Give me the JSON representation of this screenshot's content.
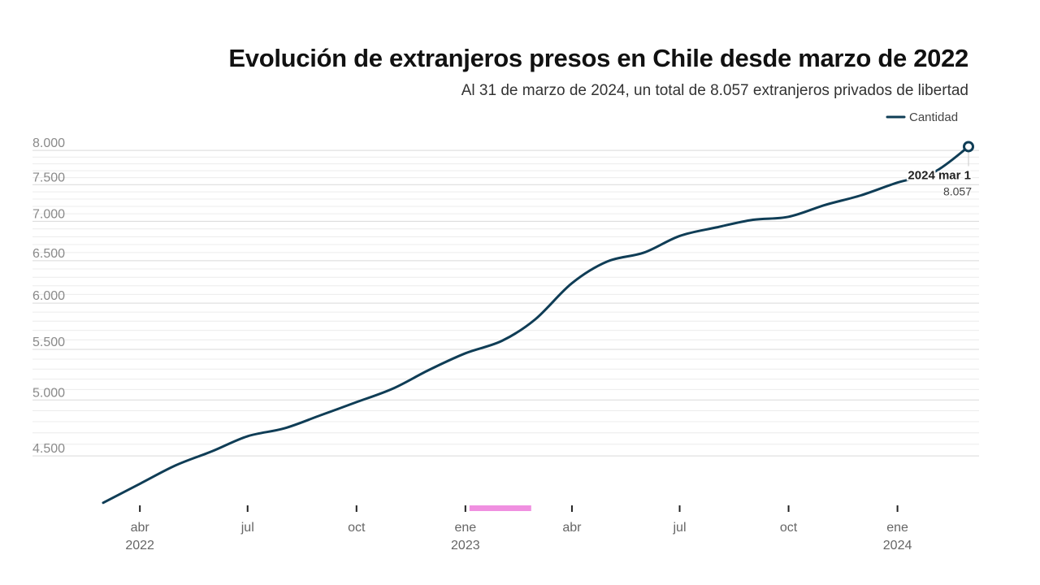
{
  "chart_data": {
    "type": "line",
    "title": "Evolución de extranjeros presos en Chile desde marzo de 2022",
    "subtitle": "Al 31 de marzo de 2024, un total de 8.057 extranjeros privados de libertad",
    "xlabel": "",
    "ylabel": "",
    "series": [
      {
        "name": "Cantidad",
        "color": "#0f3d56",
        "points": [
          {
            "x": "2022-03-01",
            "y": 4120
          },
          {
            "x": "2022-04-01",
            "y": 4270
          },
          {
            "x": "2022-05-01",
            "y": 4420
          },
          {
            "x": "2022-06-01",
            "y": 4540
          },
          {
            "x": "2022-07-01",
            "y": 4670
          },
          {
            "x": "2022-08-01",
            "y": 4740
          },
          {
            "x": "2022-09-01",
            "y": 4860
          },
          {
            "x": "2022-10-01",
            "y": 4980
          },
          {
            "x": "2022-11-01",
            "y": 5110
          },
          {
            "x": "2022-12-01",
            "y": 5290
          },
          {
            "x": "2023-01-01",
            "y": 5460
          },
          {
            "x": "2023-02-01",
            "y": 5590
          },
          {
            "x": "2023-03-01",
            "y": 5820
          },
          {
            "x": "2023-04-01",
            "y": 6230
          },
          {
            "x": "2023-05-01",
            "y": 6490
          },
          {
            "x": "2023-06-01",
            "y": 6600
          },
          {
            "x": "2023-07-01",
            "y": 6810
          },
          {
            "x": "2023-08-01",
            "y": 6920
          },
          {
            "x": "2023-09-01",
            "y": 7020
          },
          {
            "x": "2023-10-01",
            "y": 7060
          },
          {
            "x": "2023-11-01",
            "y": 7220
          },
          {
            "x": "2023-12-01",
            "y": 7350
          },
          {
            "x": "2024-01-01",
            "y": 7530
          },
          {
            "x": "2024-02-01",
            "y": 7680
          },
          {
            "x": "2024-03-01",
            "y": 8057
          }
        ]
      }
    ],
    "y_ticks": [
      {
        "value": 4500,
        "label": "4.500"
      },
      {
        "value": 5000,
        "label": "5.000"
      },
      {
        "value": 5500,
        "label": "5.500"
      },
      {
        "value": 6000,
        "label": "6.000"
      },
      {
        "value": 6500,
        "label": "6.500"
      },
      {
        "value": 7000,
        "label": "7.000"
      },
      {
        "value": 7500,
        "label": "7.500"
      },
      {
        "value": 8000,
        "label": "8.000"
      }
    ],
    "x_ticks": [
      {
        "x": "2022-04-01",
        "label": "abr",
        "year": "2022"
      },
      {
        "x": "2022-07-01",
        "label": "jul",
        "year": ""
      },
      {
        "x": "2022-10-01",
        "label": "oct",
        "year": ""
      },
      {
        "x": "2023-01-01",
        "label": "ene",
        "year": "2023"
      },
      {
        "x": "2023-04-01",
        "label": "abr",
        "year": ""
      },
      {
        "x": "2023-07-01",
        "label": "jul",
        "year": ""
      },
      {
        "x": "2023-10-01",
        "label": "oct",
        "year": ""
      },
      {
        "x": "2024-01-01",
        "label": "ene",
        "year": "2024"
      }
    ],
    "xlim": [
      "2022-03-01",
      "2024-03-01"
    ],
    "ylim": [
      4100,
      8100
    ],
    "y_scale": "log",
    "grid": true,
    "legend": {
      "position": "top-right",
      "label": "Cantidad"
    },
    "annotation": {
      "x": "2024-03-01",
      "date_label": "2024 mar 1",
      "value_label": "8.057"
    },
    "highlight_range": {
      "x0": "2023-01-01",
      "x1": "2023-03-01",
      "color": "#f08fe0"
    }
  }
}
